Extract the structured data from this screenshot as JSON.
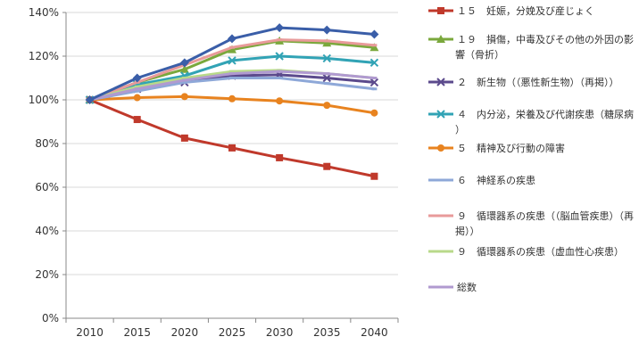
{
  "chart_data": {
    "type": "line",
    "title": "",
    "xlabel": "",
    "ylabel": "",
    "categories": [
      "2010",
      "2015",
      "2020",
      "2025",
      "2030",
      "2035",
      "2040"
    ],
    "ylim": [
      0,
      140
    ],
    "y_ticks": [
      "0%",
      "20%",
      "40%",
      "60%",
      "80%",
      "100%",
      "120%",
      "140%"
    ],
    "y_unit": "%",
    "grid": "horizontal",
    "legend": "right",
    "series": [
      {
        "name": "１５　妊娠，分娩及び産じょく",
        "color": "#c0392b",
        "marker": "square",
        "values": [
          100,
          91,
          82.5,
          78,
          73.5,
          69.5,
          65
        ]
      },
      {
        "name": "１９　損傷，中毒及びその他の外因の影響（骨折）",
        "color": "#7aa83c",
        "marker": "triangle",
        "values": [
          100,
          108,
          114,
          123,
          127,
          126,
          124
        ]
      },
      {
        "name": "２　新生物（（悪性新生物）（再掲））",
        "color": "#5b4a8c",
        "marker": "x",
        "values": [
          100,
          105,
          108,
          111,
          111.5,
          110,
          108
        ]
      },
      {
        "name": "４　内分泌，栄養及び代謝疾患（糖尿病）",
        "color": "#31a3b5",
        "marker": "x",
        "values": [
          100,
          107,
          111,
          118,
          120,
          119,
          117
        ]
      },
      {
        "name": "５　精神及び行動の障害",
        "color": "#e8831f",
        "marker": "circle",
        "values": [
          100,
          101,
          101.5,
          100.5,
          99.5,
          97.5,
          94
        ]
      },
      {
        "name": "６　神経系の疾患",
        "color": "#8ea8d8",
        "marker": "line",
        "values": [
          100,
          104,
          108,
          110,
          110,
          107.5,
          105
        ]
      },
      {
        "name": "９　循環器系の疾患（（脳血管疾患）（再掲））",
        "color": "#e89a9a",
        "marker": "line",
        "values": [
          100,
          108,
          116,
          124,
          127.5,
          127,
          125
        ]
      },
      {
        "name": "９　循環器系の疾患（虚血性心疾患）",
        "color": "#b8d98a",
        "marker": "line",
        "values": [
          100,
          106,
          110,
          113,
          113.5,
          112,
          110
        ]
      },
      {
        "name": "総数",
        "color": "#b09ad0",
        "marker": "line",
        "values": [
          100,
          105,
          109,
          112,
          113,
          112,
          110
        ]
      },
      {
        "name": "",
        "color": "#3a5ea8",
        "marker": "diamond",
        "legend": false,
        "values": [
          100,
          110,
          117,
          128,
          133,
          132,
          130
        ]
      }
    ]
  }
}
